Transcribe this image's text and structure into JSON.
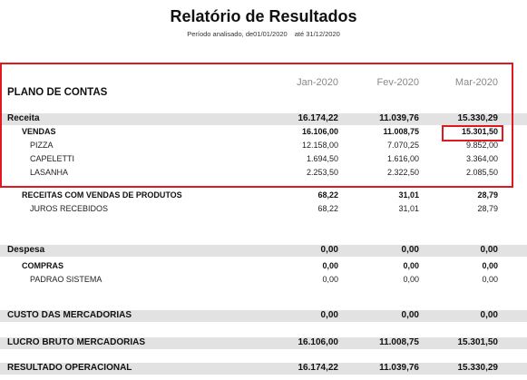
{
  "report": {
    "title": "Relatório de Resultados",
    "period_label": "Período analisado, de",
    "period_start": "01/01/2020",
    "period_mid": "até",
    "period_end": "31/12/2020"
  },
  "header": {
    "plan_label": "PLANO DE CONTAS",
    "months": [
      "Jan-2020",
      "Fev-2020",
      "Mar-2020"
    ]
  },
  "rows": [
    {
      "label": "Receita",
      "values": [
        "16.174,22",
        "11.039,76",
        "15.330,29"
      ]
    },
    {
      "label": "VENDAS",
      "values": [
        "16.106,00",
        "11.008,75",
        "15.301,50"
      ]
    },
    {
      "label": "PIZZA",
      "values": [
        "12.158,00",
        "7.070,25",
        "9.852,00"
      ]
    },
    {
      "label": "CAPELETTI",
      "values": [
        "1.694,50",
        "1.616,00",
        "3.364,00"
      ]
    },
    {
      "label": "LASANHA",
      "values": [
        "2.253,50",
        "2.322,50",
        "2.085,50"
      ]
    },
    {
      "label": "RECEITAS COM VENDAS DE PRODUTOS",
      "values": [
        "68,22",
        "31,01",
        "28,79"
      ]
    },
    {
      "label": "JUROS RECEBIDOS",
      "values": [
        "68,22",
        "31,01",
        "28,79"
      ]
    },
    {
      "label": "Despesa",
      "values": [
        "0,00",
        "0,00",
        "0,00"
      ]
    },
    {
      "label": "COMPRAS",
      "values": [
        "0,00",
        "0,00",
        "0,00"
      ]
    },
    {
      "label": "PADRAO SISTEMA",
      "values": [
        "0,00",
        "0,00",
        "0,00"
      ]
    },
    {
      "label": "CUSTO DAS MERCADORIAS",
      "values": [
        "0,00",
        "0,00",
        "0,00"
      ]
    },
    {
      "label": "LUCRO BRUTO MERCADORIAS",
      "values": [
        "16.106,00",
        "11.008,75",
        "15.301,50"
      ]
    },
    {
      "label": "RESULTADO OPERACIONAL",
      "values": [
        "16.174,22",
        "11.039,76",
        "15.330,29"
      ]
    }
  ],
  "highlight_color": "#e0191f"
}
